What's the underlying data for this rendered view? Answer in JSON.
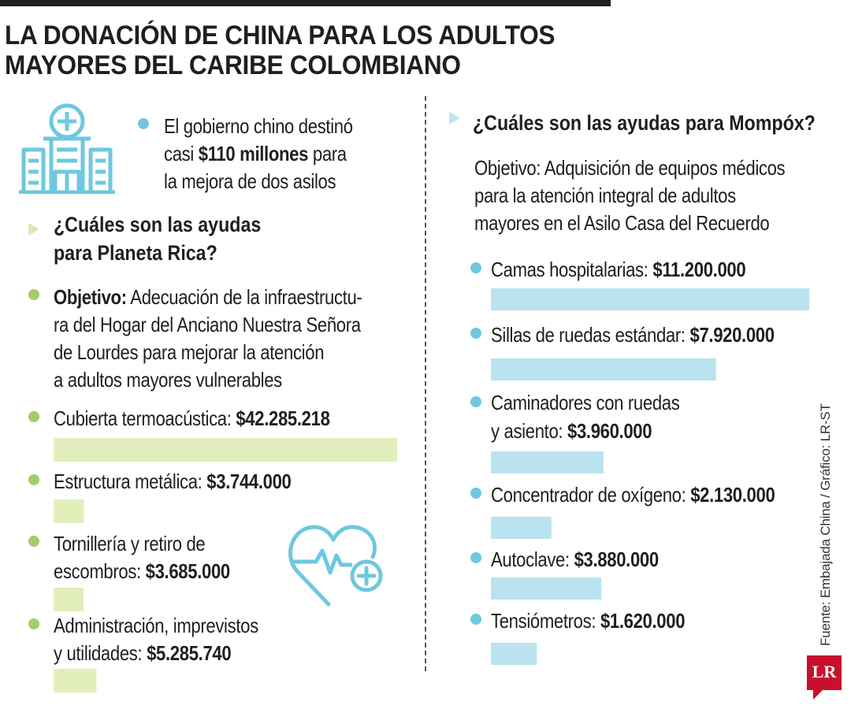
{
  "header": {
    "title_line1": "LA DONACIÓN DE CHINA PARA LOS ADULTOS",
    "title_line2": "MAYORES DEL CARIBE COLOMBIANO"
  },
  "intro": {
    "line1": "El gobierno chino destinó",
    "line2_pre": "casi ",
    "line2_bold": "$110 millones",
    "line2_post": " para",
    "line3": "la mejora de dos asilos"
  },
  "left": {
    "question_line1": "¿Cuáles son las ayudas",
    "question_line2": "para Planeta Rica?",
    "objective_label": "Objetivo:",
    "objective_line1": " Adecuación de la infraestructu-",
    "objective_line2": "ra del Hogar del Anciano Nuestra Señora",
    "objective_line3": "de Lourdes para mejorar la atención",
    "objective_line4": "a adultos mayores vulnerables",
    "items": [
      {
        "label_line1": "Cubierta termoacústica: ",
        "label_line2": "",
        "amount": "$42.285.218"
      },
      {
        "label_line1": "Estructura metálica: ",
        "label_line2": "",
        "amount": "$3.744.000"
      },
      {
        "label_line1": "Tornillería y retiro de",
        "label_line2": "escombros: ",
        "amount": "$3.685.000"
      },
      {
        "label_line1": "Administración, imprevistos",
        "label_line2": "y utilidades: ",
        "amount": "$5.285.740"
      }
    ]
  },
  "right": {
    "question": "¿Cuáles son las ayudas para Mompóx?",
    "objective_line1": "Objetivo: Adquisición de equipos médicos",
    "objective_line2": "para la atención integral de adultos",
    "objective_line3": "mayores en el Asilo Casa del Recuerdo",
    "items": [
      {
        "label_line1": "Camas hospitalarias: ",
        "label_line2": "",
        "amount": "$11.200.000"
      },
      {
        "label_line1": "Sillas de ruedas estándar: ",
        "label_line2": "",
        "amount": "$7.920.000"
      },
      {
        "label_line1": "Caminadores con ruedas",
        "label_line2": "y asiento: ",
        "amount": "$3.960.000"
      },
      {
        "label_line1": "Concentrador de oxígeno: ",
        "label_line2": "",
        "amount": "$2.130.000"
      },
      {
        "label_line1": "Autoclave: ",
        "label_line2": "",
        "amount": "$3.880.000"
      },
      {
        "label_line1": "Tensiómetros: ",
        "label_line2": "",
        "amount": "$1.620.000"
      }
    ]
  },
  "source": "Fuente: Embajada China / Gráfico: LR-ST",
  "logo": "LR",
  "icons": {
    "building": "hospital-building-icon",
    "heart": "heart-pulse-icon"
  },
  "colors": {
    "green_bar": "#e3eebd",
    "blue_bar": "#b9e3ee",
    "green_dot": "#a5cc6b",
    "blue_dot": "#6ec8de",
    "logo_red": "#c8102e"
  },
  "chart_data": [
    {
      "type": "bar",
      "orientation": "horizontal",
      "title": "¿Cuáles son las ayudas para Planeta Rica?",
      "categories": [
        "Cubierta termoacústica",
        "Estructura metálica",
        "Tornillería y retiro de escombros",
        "Administración, imprevistos y utilidades"
      ],
      "values": [
        42285218,
        3744000,
        3685000,
        5285740
      ]
    },
    {
      "type": "bar",
      "orientation": "horizontal",
      "title": "¿Cuáles son las ayudas para Mompóx?",
      "categories": [
        "Camas hospitalarias",
        "Sillas de ruedas estándar",
        "Caminadores con ruedas y asiento",
        "Concentrador de oxígeno",
        "Autoclave",
        "Tensiómetros"
      ],
      "values": [
        11200000,
        7920000,
        3960000,
        2130000,
        3880000,
        1620000
      ]
    }
  ]
}
